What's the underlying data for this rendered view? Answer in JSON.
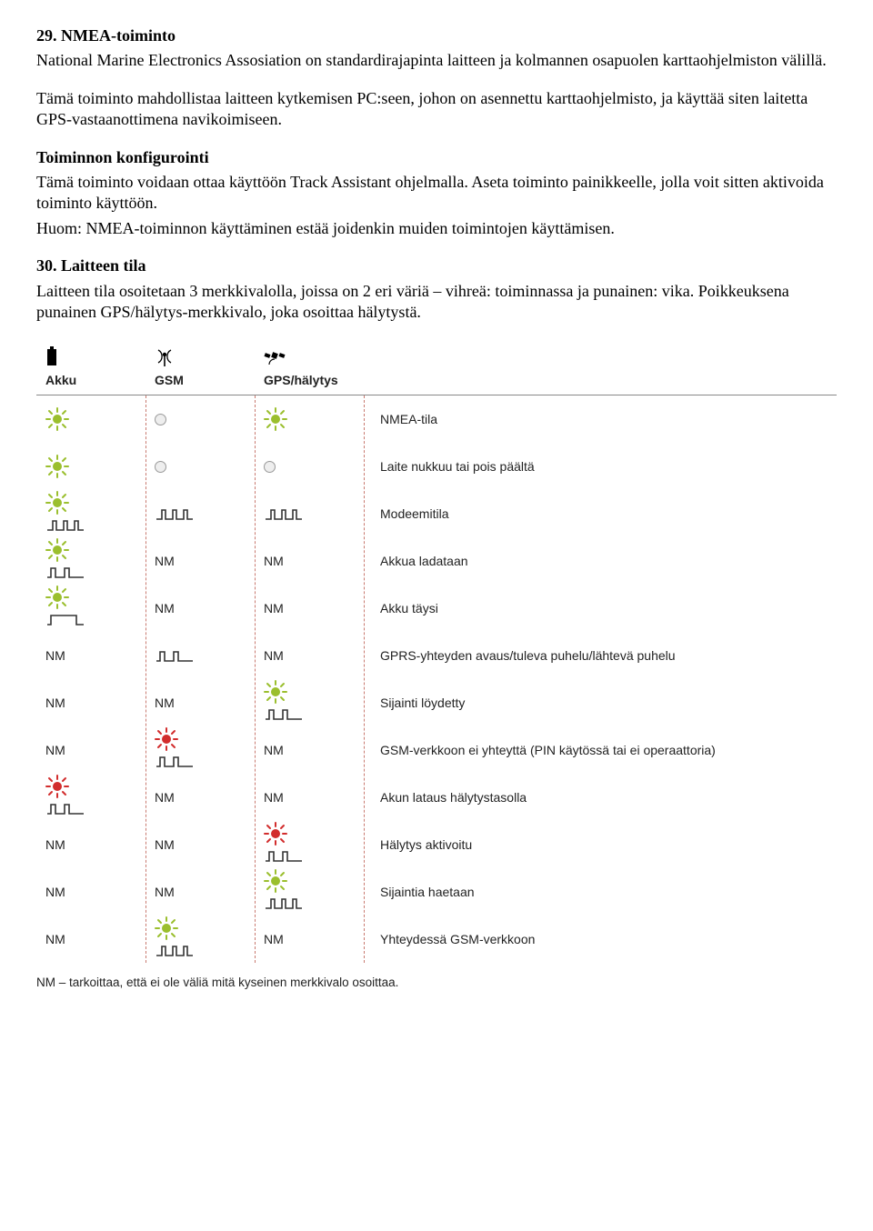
{
  "section29": {
    "title": "29. NMEA-toiminto",
    "p1": "National Marine Electronics Assosiation on standardirajapinta laitteen ja kolmannen osapuolen karttaohjelmiston välillä.",
    "p2": "Tämä toiminto mahdollistaa laitteen kytkemisen PC:seen, johon on asennettu karttaohjelmisto, ja käyttää siten laitetta GPS-vastaanottimena navikoimiseen.",
    "subhead": "Toiminnon konfigurointi",
    "p3": "Tämä toiminto voidaan ottaa käyttöön Track Assistant ohjelmalla. Aseta toiminto painikkeelle, jolla voit sitten aktivoida toiminto käyttöön.",
    "p4": "Huom: NMEA-toiminnon käyttäminen estää joidenkin muiden toimintojen käyttämisen."
  },
  "section30": {
    "title": "30. Laitteen tila",
    "p1": "Laitteen tila osoitetaan 3 merkkivalolla, joissa on 2 eri väriä – vihreä: toiminnassa ja punainen: vika. Poikkeuksena punainen GPS/hälytys-merkkivalo, joka osoittaa hälytystä."
  },
  "chart": {
    "headers": {
      "akku": "Akku",
      "gsm": "GSM",
      "gps": "GPS/hälytys"
    },
    "nm_label": "NM",
    "colors": {
      "green": "#9bbf2e",
      "red": "#d22d2d",
      "dash": "#c97a70",
      "wave": "#333333"
    },
    "icon_row_height": 40,
    "rows": [
      {
        "c1": {
          "type": "led",
          "color": "green"
        },
        "c2": {
          "type": "off"
        },
        "c3": {
          "type": "led",
          "color": "green"
        },
        "label": "NMEA-tila"
      },
      {
        "c1": {
          "type": "led",
          "color": "green"
        },
        "c2": {
          "type": "off"
        },
        "c3": {
          "type": "off"
        },
        "label": "Laite nukkuu tai pois päältä"
      },
      {
        "c1": {
          "type": "ledwave",
          "color": "green",
          "wave": "short"
        },
        "c2": {
          "type": "wave",
          "wave": "short"
        },
        "c3": {
          "type": "wave",
          "wave": "short"
        },
        "label": "Modeemitila"
      },
      {
        "c1": {
          "type": "ledwave",
          "color": "green",
          "wave": "pulse"
        },
        "c2": {
          "type": "nm"
        },
        "c3": {
          "type": "nm"
        },
        "label": "Akkua ladataan"
      },
      {
        "c1": {
          "type": "ledwave",
          "color": "green",
          "wave": "long"
        },
        "c2": {
          "type": "nm"
        },
        "c3": {
          "type": "nm"
        },
        "label": "Akku täysi"
      },
      {
        "c1": {
          "type": "nm"
        },
        "c2": {
          "type": "wave",
          "wave": "pulse"
        },
        "c3": {
          "type": "nm"
        },
        "label": "GPRS-yhteyden avaus/tuleva puhelu/lähtevä puhelu"
      },
      {
        "c1": {
          "type": "nm"
        },
        "c2": {
          "type": "nm"
        },
        "c3": {
          "type": "ledwave",
          "color": "green",
          "wave": "pulse"
        },
        "label": "Sijainti löydetty"
      },
      {
        "c1": {
          "type": "nm"
        },
        "c2": {
          "type": "ledwave",
          "color": "red",
          "wave": "pulse"
        },
        "c3": {
          "type": "nm"
        },
        "label": "GSM-verkkoon ei yhteyttä (PIN käytössä tai ei operaattoria)"
      },
      {
        "c1": {
          "type": "ledwave",
          "color": "red",
          "wave": "pulse"
        },
        "c2": {
          "type": "nm"
        },
        "c3": {
          "type": "nm"
        },
        "label": "Akun lataus hälytystasolla"
      },
      {
        "c1": {
          "type": "nm"
        },
        "c2": {
          "type": "nm"
        },
        "c3": {
          "type": "ledwave",
          "color": "red",
          "wave": "pulse"
        },
        "label": "Hälytys aktivoitu"
      },
      {
        "c1": {
          "type": "nm"
        },
        "c2": {
          "type": "nm"
        },
        "c3": {
          "type": "ledwave",
          "color": "green",
          "wave": "short"
        },
        "label": "Sijaintia haetaan"
      },
      {
        "c1": {
          "type": "nm"
        },
        "c2": {
          "type": "ledwave",
          "color": "green",
          "wave": "short"
        },
        "c3": {
          "type": "nm"
        },
        "label": "Yhteydessä GSM-verkkoon"
      }
    ],
    "footer": "NM – tarkoittaa, että ei ole väliä mitä kyseinen merkkivalo osoittaa."
  }
}
